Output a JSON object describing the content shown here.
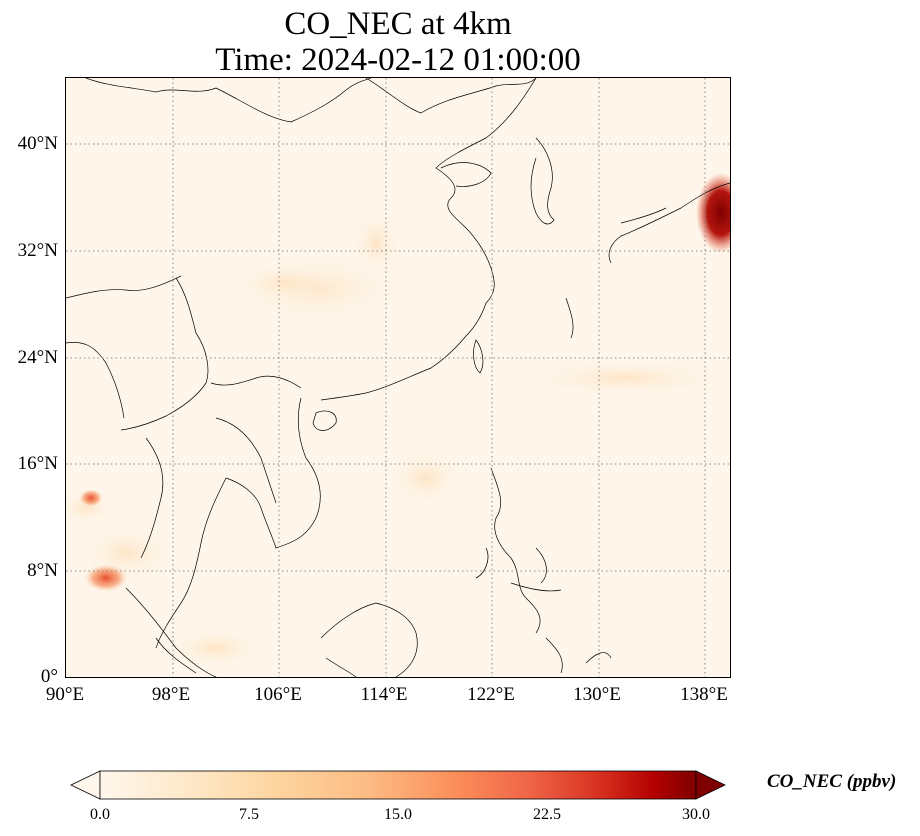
{
  "title": {
    "line1": "CO_NEC at 4km",
    "line2": "Time: 2024-02-12 01:00:00"
  },
  "map": {
    "lat_ticks": [
      "40°N",
      "32°N",
      "24°N",
      "16°N",
      "8°N",
      "0°"
    ],
    "lon_ticks": [
      "90°E",
      "98°E",
      "106°E",
      "114°E",
      "122°E",
      "130°E",
      "138°E"
    ],
    "extent": {
      "lon_min": 90,
      "lon_max": 140,
      "lat_min": 0,
      "lat_max": 45
    },
    "gridlines": "dotted",
    "background_color": "#fef6ea",
    "plume_color": "#a5150c"
  },
  "colorbar": {
    "label": "CO_NEC (ppbv)",
    "ticks": [
      "0.0",
      "7.5",
      "15.0",
      "22.5",
      "30.0"
    ],
    "min": 0,
    "max": 30,
    "colormap": "OrRd",
    "extend": "both"
  }
}
